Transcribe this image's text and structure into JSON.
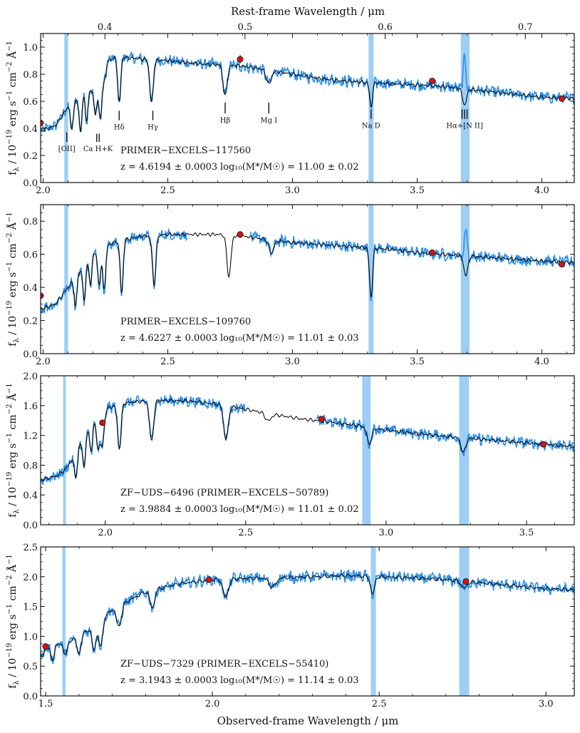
{
  "figure": {
    "xlabel": "Observed-frame Wavelength / μm",
    "top_xlabel": "Rest-frame Wavelength / μm",
    "ylabel_main": "f",
    "ylabel_sub": "λ",
    "ylabel_rest": " / 10",
    "ylabel_exp1": "−19",
    "ylabel_units": " erg s",
    "ylabel_exp2": "−1",
    "ylabel_units2": " cm",
    "ylabel_exp3": "−2",
    "ylabel_units3": " Å",
    "ylabel_exp4": "−1"
  },
  "colors": {
    "observed": "#2b8ee8",
    "model": "#0a0a0a",
    "band": "#8cc6f5",
    "photometry": "#dd1111"
  },
  "chart_data": [
    {
      "type": "line",
      "name": "PRIMER-EXCELS-117560",
      "label": "PRIMER−EXCELS−117560",
      "redshift_text": "z = 4.6194 ± 0.0003",
      "mass_text": "log₁₀(M*/M☉) = 11.00 ± 0.02",
      "z": 4.6194,
      "xlim": [
        1.99,
        4.13
      ],
      "ylim": [
        0.0,
        1.1
      ],
      "xticks": [
        2.0,
        2.5,
        3.0,
        3.5,
        4.0
      ],
      "xtick_labels": [
        "2.0",
        "2.5",
        "3.0",
        "3.5",
        "4.0"
      ],
      "yticks": [
        0.0,
        0.2,
        0.4,
        0.6,
        0.8,
        1.0
      ],
      "ytick_labels": [
        "0.0",
        "0.2",
        "0.4",
        "0.6",
        "0.8",
        "1.0"
      ],
      "top_axis": {
        "ticks": [
          0.4,
          0.5,
          0.6,
          0.7
        ],
        "labels": [
          "0.4",
          "0.5",
          "0.6",
          "0.7"
        ]
      },
      "bands": [
        [
          2.085,
          2.1
        ],
        [
          3.305,
          3.325
        ],
        [
          3.675,
          3.71
        ]
      ],
      "continuum": [
        [
          1.99,
          0.38
        ],
        [
          2.05,
          0.42
        ],
        [
          2.1,
          0.56
        ],
        [
          2.15,
          0.62
        ],
        [
          2.2,
          0.7
        ],
        [
          2.25,
          0.78
        ],
        [
          2.26,
          0.9
        ],
        [
          2.3,
          0.93
        ],
        [
          2.4,
          0.91
        ],
        [
          2.5,
          0.9
        ],
        [
          2.6,
          0.88
        ],
        [
          2.7,
          0.87
        ],
        [
          2.8,
          0.86
        ],
        [
          2.9,
          0.83
        ],
        [
          3.0,
          0.8
        ],
        [
          3.1,
          0.77
        ],
        [
          3.2,
          0.75
        ],
        [
          3.3,
          0.74
        ],
        [
          3.4,
          0.73
        ],
        [
          3.5,
          0.72
        ],
        [
          3.6,
          0.71
        ],
        [
          3.7,
          0.69
        ],
        [
          3.8,
          0.67
        ],
        [
          3.9,
          0.65
        ],
        [
          4.0,
          0.63
        ],
        [
          4.13,
          0.62
        ]
      ],
      "absorption": [
        [
          2.115,
          0.2,
          0.005
        ],
        [
          2.15,
          0.25,
          0.005
        ],
        [
          2.175,
          0.2,
          0.005
        ],
        [
          2.21,
          0.22,
          0.006
        ],
        [
          2.23,
          0.28,
          0.006
        ],
        [
          2.305,
          0.34,
          0.006
        ],
        [
          2.435,
          0.32,
          0.007
        ],
        [
          2.73,
          0.23,
          0.008
        ],
        [
          2.905,
          0.1,
          0.01
        ],
        [
          3.315,
          0.18,
          0.006
        ],
        [
          3.69,
          0.12,
          0.008
        ]
      ],
      "emission": [
        [
          3.69,
          0.36,
          0.006
        ]
      ],
      "photometry": [
        [
          1.99,
          0.44
        ],
        [
          2.79,
          0.91
        ],
        [
          3.56,
          0.75
        ],
        [
          4.08,
          0.62
        ]
      ],
      "photometry_err": [
        0.01,
        0.03,
        0.02,
        0.01
      ],
      "spectral_lines": [
        {
          "label": "[OII]",
          "x": 2.095,
          "y0": 0.3,
          "y1": 0.37,
          "ticks": 1,
          "pos": "below"
        },
        {
          "label": "Ca H+K",
          "x": 2.22,
          "y0": 0.3,
          "y1": 0.36,
          "ticks": 2,
          "pos": "below"
        },
        {
          "label": "Hδ",
          "x": 2.305,
          "y0": 0.46,
          "y1": 0.53,
          "ticks": 1,
          "pos": "below"
        },
        {
          "label": "Hγ",
          "x": 2.44,
          "y0": 0.46,
          "y1": 0.53,
          "ticks": 1,
          "pos": "below"
        },
        {
          "label": "Hβ",
          "x": 2.73,
          "y0": 0.51,
          "y1": 0.59,
          "ticks": 1,
          "pos": "below"
        },
        {
          "label": "Mg I",
          "x": 2.905,
          "y0": 0.51,
          "y1": 0.59,
          "ticks": 1,
          "pos": "below"
        },
        {
          "label": "Na D",
          "x": 3.315,
          "y0": 0.47,
          "y1": 0.54,
          "ticks": 1,
          "pos": "below"
        },
        {
          "label": "Hα+[N II]",
          "x": 3.69,
          "y0": 0.47,
          "y1": 0.54,
          "ticks": 3,
          "pos": "below"
        }
      ],
      "gap": null
    },
    {
      "type": "line",
      "name": "PRIMER-EXCELS-109760",
      "label": "PRIMER−EXCELS−109760",
      "redshift_text": "z = 4.6227 ± 0.0003",
      "mass_text": "log₁₀(M*/M☉) = 11.01 ± 0.03",
      "z": 4.6227,
      "xlim": [
        1.99,
        4.13
      ],
      "ylim": [
        0.0,
        0.9
      ],
      "xticks": [
        2.0,
        2.5,
        3.0,
        3.5,
        4.0
      ],
      "xtick_labels": [
        "2.0",
        "2.5",
        "3.0",
        "3.5",
        "4.0"
      ],
      "yticks": [
        0.0,
        0.2,
        0.4,
        0.6,
        0.8
      ],
      "ytick_labels": [
        "0.0",
        "0.2",
        "0.4",
        "0.6",
        "0.8"
      ],
      "bands": [
        [
          2.085,
          2.1
        ],
        [
          3.305,
          3.325
        ],
        [
          3.675,
          3.71
        ]
      ],
      "continuum": [
        [
          1.99,
          0.27
        ],
        [
          2.05,
          0.3
        ],
        [
          2.1,
          0.4
        ],
        [
          2.15,
          0.5
        ],
        [
          2.2,
          0.6
        ],
        [
          2.25,
          0.65
        ],
        [
          2.3,
          0.68
        ],
        [
          2.4,
          0.71
        ],
        [
          2.5,
          0.72
        ],
        [
          2.6,
          0.72
        ],
        [
          2.7,
          0.72
        ],
        [
          2.8,
          0.71
        ],
        [
          2.9,
          0.69
        ],
        [
          3.0,
          0.67
        ],
        [
          3.1,
          0.66
        ],
        [
          3.2,
          0.65
        ],
        [
          3.3,
          0.64
        ],
        [
          3.4,
          0.63
        ],
        [
          3.5,
          0.61
        ],
        [
          3.6,
          0.6
        ],
        [
          3.7,
          0.59
        ],
        [
          3.8,
          0.58
        ],
        [
          3.9,
          0.57
        ],
        [
          4.0,
          0.56
        ],
        [
          4.13,
          0.55
        ]
      ],
      "absorption": [
        [
          2.13,
          0.18,
          0.005
        ],
        [
          2.165,
          0.22,
          0.005
        ],
        [
          2.19,
          0.17,
          0.005
        ],
        [
          2.225,
          0.2,
          0.006
        ],
        [
          2.245,
          0.25,
          0.006
        ],
        [
          2.315,
          0.32,
          0.006
        ],
        [
          2.445,
          0.3,
          0.007
        ],
        [
          2.745,
          0.25,
          0.008
        ],
        [
          2.915,
          0.08,
          0.01
        ],
        [
          3.315,
          0.3,
          0.006
        ],
        [
          3.695,
          0.12,
          0.008
        ]
      ],
      "emission": [
        [
          3.695,
          0.3,
          0.006
        ]
      ],
      "photometry": [
        [
          1.99,
          0.35
        ],
        [
          2.79,
          0.72
        ],
        [
          3.56,
          0.61
        ],
        [
          4.08,
          0.54
        ]
      ],
      "photometry_err": [
        0.01,
        0.02,
        0.01,
        0.01
      ],
      "spectral_lines": [],
      "gap": [
        2.58,
        2.83
      ]
    },
    {
      "type": "line",
      "name": "ZF-UDS-6496 (PRIMER-EXCELS-50789)",
      "label": "ZF−UDS−6496 (PRIMER−EXCELS−50789)",
      "redshift_text": "z = 3.9884 ± 0.0003",
      "mass_text": "log₁₀(M*/M☉) = 11.01 ± 0.02",
      "z": 3.9884,
      "xlim": [
        1.77,
        3.67
      ],
      "ylim": [
        0.0,
        2.0
      ],
      "xticks": [
        2.0,
        2.5,
        3.0,
        3.5
      ],
      "xtick_labels": [
        "2.0",
        "2.5",
        "3.0",
        "3.5"
      ],
      "yticks": [
        0.0,
        0.4,
        0.8,
        1.2,
        1.6,
        2.0
      ],
      "ytick_labels": [
        "0.0",
        "0.4",
        "0.8",
        "1.2",
        "1.6",
        "2.0"
      ],
      "bands": [
        [
          1.85,
          1.86
        ],
        [
          2.915,
          2.945
        ],
        [
          3.26,
          3.295
        ]
      ],
      "continuum": [
        [
          1.77,
          0.6
        ],
        [
          1.83,
          0.66
        ],
        [
          1.86,
          0.75
        ],
        [
          1.9,
          1.0
        ],
        [
          1.95,
          1.35
        ],
        [
          2.0,
          1.55
        ],
        [
          2.05,
          1.62
        ],
        [
          2.1,
          1.65
        ],
        [
          2.2,
          1.67
        ],
        [
          2.3,
          1.66
        ],
        [
          2.4,
          1.62
        ],
        [
          2.5,
          1.55
        ],
        [
          2.6,
          1.48
        ],
        [
          2.7,
          1.42
        ],
        [
          2.8,
          1.38
        ],
        [
          2.9,
          1.33
        ],
        [
          3.0,
          1.27
        ],
        [
          3.1,
          1.23
        ],
        [
          3.2,
          1.19
        ],
        [
          3.3,
          1.16
        ],
        [
          3.4,
          1.13
        ],
        [
          3.5,
          1.1
        ],
        [
          3.6,
          1.07
        ],
        [
          3.67,
          1.05
        ]
      ],
      "absorption": [
        [
          1.895,
          0.35,
          0.005
        ],
        [
          1.925,
          0.4,
          0.005
        ],
        [
          1.95,
          0.35,
          0.005
        ],
        [
          1.975,
          0.42,
          0.006
        ],
        [
          1.99,
          0.45,
          0.006
        ],
        [
          2.05,
          0.6,
          0.006
        ],
        [
          2.165,
          0.55,
          0.007
        ],
        [
          2.43,
          0.45,
          0.008
        ],
        [
          2.58,
          0.1,
          0.01
        ],
        [
          2.94,
          0.22,
          0.008
        ],
        [
          3.275,
          0.2,
          0.008
        ]
      ],
      "emission": [],
      "photometry": [
        [
          1.99,
          1.37
        ],
        [
          2.77,
          1.42
        ],
        [
          3.56,
          1.08
        ]
      ],
      "photometry_err": [
        0.03,
        0.03,
        0.02
      ],
      "spectral_lines": [],
      "gap": [
        2.5,
        2.75
      ]
    },
    {
      "type": "line",
      "name": "ZF-UDS-7329 (PRIMER-EXCELS-55410)",
      "label": "ZF−UDS−7329 (PRIMER−EXCELS−55410)",
      "redshift_text": "z = 3.1943 ± 0.0003",
      "mass_text": "log₁₀(M*/M☉) = 11.14 ± 0.03",
      "z": 3.1943,
      "xlim": [
        1.485,
        3.085
      ],
      "ylim": [
        0.0,
        2.5
      ],
      "xticks": [
        1.5,
        2.0,
        2.5,
        3.0
      ],
      "xtick_labels": [
        "1.5",
        "2.0",
        "2.5",
        "3.0"
      ],
      "yticks": [
        0.0,
        0.5,
        1.0,
        1.5,
        2.0,
        2.5
      ],
      "ytick_labels": [
        "0.0",
        "0.5",
        "1.0",
        "1.5",
        "2.0",
        "2.5"
      ],
      "bands": [
        [
          1.55,
          1.56
        ],
        [
          2.475,
          2.49
        ],
        [
          2.74,
          2.77
        ]
      ],
      "continuum": [
        [
          1.485,
          0.8
        ],
        [
          1.55,
          0.88
        ],
        [
          1.6,
          1.0
        ],
        [
          1.65,
          1.2
        ],
        [
          1.7,
          1.45
        ],
        [
          1.75,
          1.6
        ],
        [
          1.8,
          1.75
        ],
        [
          1.9,
          1.88
        ],
        [
          2.0,
          1.95
        ],
        [
          2.1,
          1.97
        ],
        [
          2.2,
          1.98
        ],
        [
          2.3,
          2.0
        ],
        [
          2.4,
          2.02
        ],
        [
          2.5,
          2.0
        ],
        [
          2.6,
          1.98
        ],
        [
          2.7,
          1.95
        ],
        [
          2.8,
          1.9
        ],
        [
          2.9,
          1.85
        ],
        [
          3.0,
          1.8
        ],
        [
          3.085,
          1.78
        ]
      ],
      "absorption": [
        [
          1.49,
          0.15,
          0.005
        ],
        [
          1.52,
          0.25,
          0.005
        ],
        [
          1.56,
          0.2,
          0.006
        ],
        [
          1.6,
          0.3,
          0.006
        ],
        [
          1.645,
          0.4,
          0.006
        ],
        [
          1.665,
          0.45,
          0.006
        ],
        [
          1.72,
          0.35,
          0.007
        ],
        [
          1.82,
          0.3,
          0.007
        ],
        [
          2.04,
          0.3,
          0.008
        ],
        [
          2.18,
          0.15,
          0.01
        ],
        [
          2.48,
          0.3,
          0.006
        ],
        [
          2.755,
          0.12,
          0.008
        ]
      ],
      "emission": [],
      "photometry": [
        [
          1.5,
          0.83
        ],
        [
          1.99,
          1.95
        ],
        [
          2.76,
          1.92
        ]
      ],
      "photometry_err": [
        0.03,
        0.04,
        0.03
      ],
      "spectral_lines": [],
      "gap": null
    }
  ]
}
